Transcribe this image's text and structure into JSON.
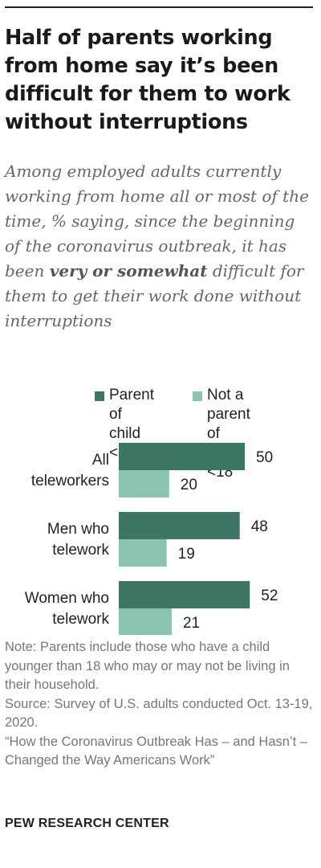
{
  "title": "Half of parents working from home say it’s been difficult for them to work without interruptions",
  "subtitle": {
    "before": "Among employed adults currently working from home all or most of the time, % saying, since the beginning of the coronavirus outbreak, it has been ",
    "emphasis": "very or somewhat",
    "after": " difficult for them to get their work done without interruptions"
  },
  "notes": {
    "note": "Note: Parents include those who have a child younger than 18 who may or may not be living in their household.",
    "source": "Source: Survey of U.S. adults conducted Oct. 13-19, 2020.",
    "report": "“How the Coronavirus Outbreak Has – and Hasn’t – Changed the Way Americans Work”"
  },
  "footer": "PEW RESEARCH CENTER",
  "colors": {
    "parent": "#3e7564",
    "not_parent": "#8ac4b0"
  },
  "chart_data": {
    "type": "bar",
    "orientation": "horizontal",
    "categories": [
      [
        "All",
        "teleworkers"
      ],
      [
        "Men who",
        "telework"
      ],
      [
        "Women who",
        "telework"
      ]
    ],
    "series": [
      {
        "name": "Parent of child <18",
        "legend_lines": [
          "Parent of",
          "child <18"
        ],
        "values": [
          50,
          48,
          52
        ]
      },
      {
        "name": "Not a parent of child <18",
        "legend_lines": [
          "Not a parent",
          "of child <18"
        ],
        "values": [
          20,
          19,
          21
        ]
      }
    ],
    "xlim": [
      0,
      100
    ],
    "grid": false,
    "legend": "top"
  }
}
